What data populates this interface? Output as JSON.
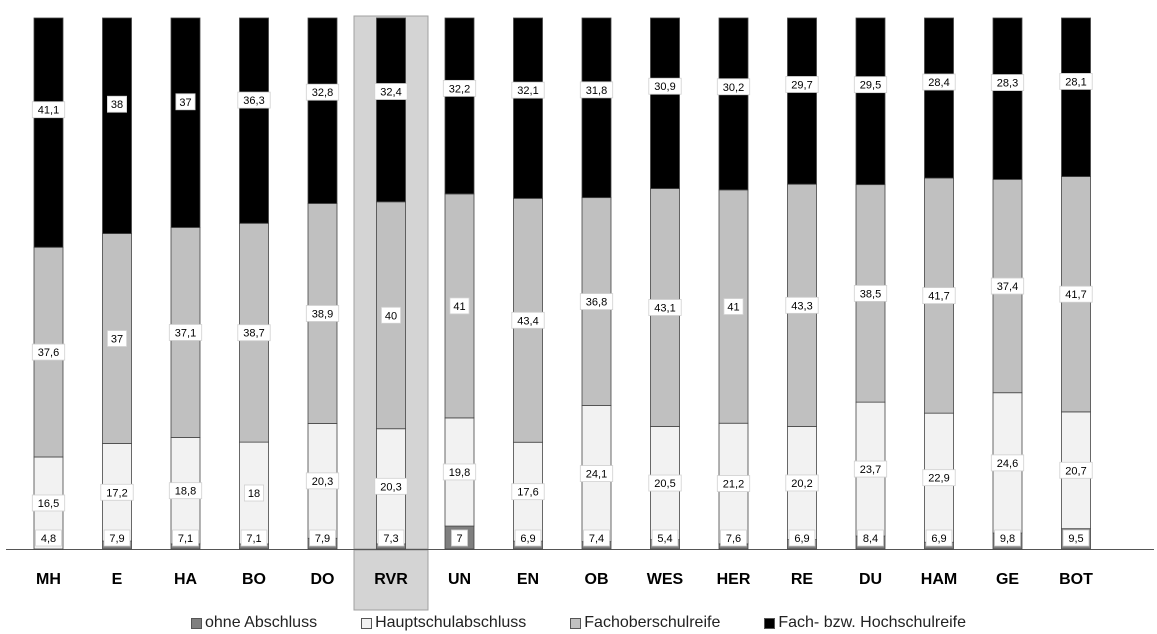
{
  "chart_data": {
    "type": "bar",
    "stacked": true,
    "normalized_percent": true,
    "highlighted_category": "RVR",
    "categories": [
      "MH",
      "E",
      "HA",
      "BO",
      "DO",
      "RVR",
      "UN",
      "EN",
      "OB",
      "WES",
      "HER",
      "RE",
      "DU",
      "HAM",
      "GE",
      "BOT"
    ],
    "series": [
      {
        "name": "ohne Abschluss",
        "color": "#7f7f7f",
        "values": [
          0,
          1.4,
          0.9,
          0.9,
          1.9,
          0.9,
          4.2,
          1.4,
          1.3,
          1.7,
          0.9,
          1.7,
          2.3,
          1.2,
          2.8,
          3.6
        ]
      },
      {
        "name": "Hauptschulabschluss",
        "color": "#f2f2f2",
        "values": [
          16.5,
          17.2,
          18.8,
          18,
          20.3,
          20.3,
          19.8,
          17.6,
          24.1,
          20.5,
          21.2,
          20.2,
          23.7,
          22.9,
          24.6,
          20.7
        ]
      },
      {
        "name": "Fachoberschulreife",
        "color": "#c0c0c0",
        "values": [
          37.6,
          37,
          37.1,
          38.7,
          38.9,
          40,
          41,
          43.4,
          36.8,
          43.1,
          41,
          43.3,
          38.5,
          41.7,
          37.4,
          41.7
        ]
      },
      {
        "name": "Fach- bzw. Hochschulreife",
        "color": "#000000",
        "values": [
          41.1,
          38,
          37,
          36.3,
          32.8,
          32.4,
          32.2,
          32.1,
          31.8,
          30.9,
          30.2,
          29.7,
          29.5,
          28.4,
          28.3,
          28.1
        ]
      }
    ],
    "data_labels": {
      "bottom": [
        4.8,
        7.9,
        7.1,
        7.1,
        7.9,
        7.3,
        7,
        6.9,
        7.4,
        5.4,
        7.6,
        6.9,
        8.4,
        6.9,
        9.8,
        9.5
      ],
      "Hauptschulabschluss": [
        "16,5",
        "17,2",
        "18,8",
        "18",
        "20,3",
        "20,3",
        "19,8",
        "17,6",
        "24,1",
        "20,5",
        "21,2",
        "20,2",
        "23,7",
        "22,9",
        "24,6",
        "20,7"
      ],
      "Fachoberschulreife": [
        "37,6",
        "37",
        "37,1",
        "38,7",
        "38,9",
        "40",
        "41",
        "43,4",
        "36,8",
        "43,1",
        "41",
        "43,3",
        "38,5",
        "41,7",
        "37,4",
        "41,7"
      ],
      "Fach- bzw. Hochschulreife": [
        "41,1",
        "38",
        "37",
        "36,3",
        "32,8",
        "32,4",
        "32,2",
        "32,1",
        "31,8",
        "30,9",
        "30,2",
        "29,7",
        "29,5",
        "28,4",
        "28,3",
        "28,1"
      ],
      "bottom_text": [
        "4,8",
        "7,9",
        "7,1",
        "7,1",
        "7,9",
        "7,3",
        "7",
        "6,9",
        "7,4",
        "5,4",
        "7,6",
        "6,9",
        "8,4",
        "6,9",
        "9,8",
        "9,5"
      ]
    },
    "ylim": [
      0,
      100
    ],
    "grid": false,
    "legend_position": "bottom"
  },
  "legend": [
    {
      "label": "ohne Abschluss",
      "color": "#7f7f7f"
    },
    {
      "label": "Hauptschulabschluss",
      "color": "#f2f2f2"
    },
    {
      "label": "Fachoberschulreife",
      "color": "#c0c0c0"
    },
    {
      "label": "Fach- bzw. Hochschulreife",
      "color": "#000000"
    }
  ]
}
